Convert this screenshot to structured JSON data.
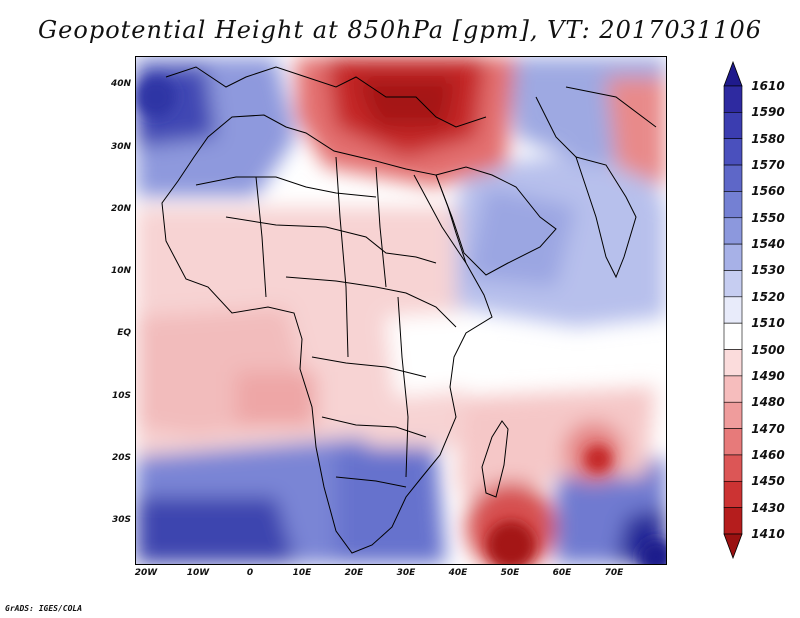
{
  "title": "Geopotential Height at 850hPa [gpm], VT: 2017031106",
  "credit": "GrADS: IGES/COLA",
  "map": {
    "lat_ticks": [
      "40N",
      "30N",
      "20N",
      "10N",
      "EQ",
      "10S",
      "20S",
      "30S"
    ],
    "lon_ticks": [
      "20W",
      "10W",
      "0",
      "10E",
      "20E",
      "30E",
      "40E",
      "50E",
      "60E",
      "70E"
    ],
    "extent": {
      "lon": [
        -22,
        80
      ],
      "lat": [
        -36,
        45
      ]
    }
  },
  "colorbar": {
    "levels": [
      "1610",
      "1590",
      "1580",
      "1570",
      "1560",
      "1550",
      "1540",
      "1530",
      "1520",
      "1510",
      "1500",
      "1490",
      "1480",
      "1470",
      "1460",
      "1450",
      "1430",
      "1410"
    ],
    "colors": [
      "#1f1a8c",
      "#2e2aa0",
      "#3b3db0",
      "#4a50bd",
      "#5e67c8",
      "#7480d3",
      "#8c98dd",
      "#a7b1e7",
      "#c6cdf1",
      "#e8ebfa",
      "#ffffff",
      "#fbdcdc",
      "#f6bdbd",
      "#ef9c9c",
      "#e77a7a",
      "#dc5656",
      "#cc3333",
      "#b51d1d",
      "#9a1111"
    ]
  }
}
